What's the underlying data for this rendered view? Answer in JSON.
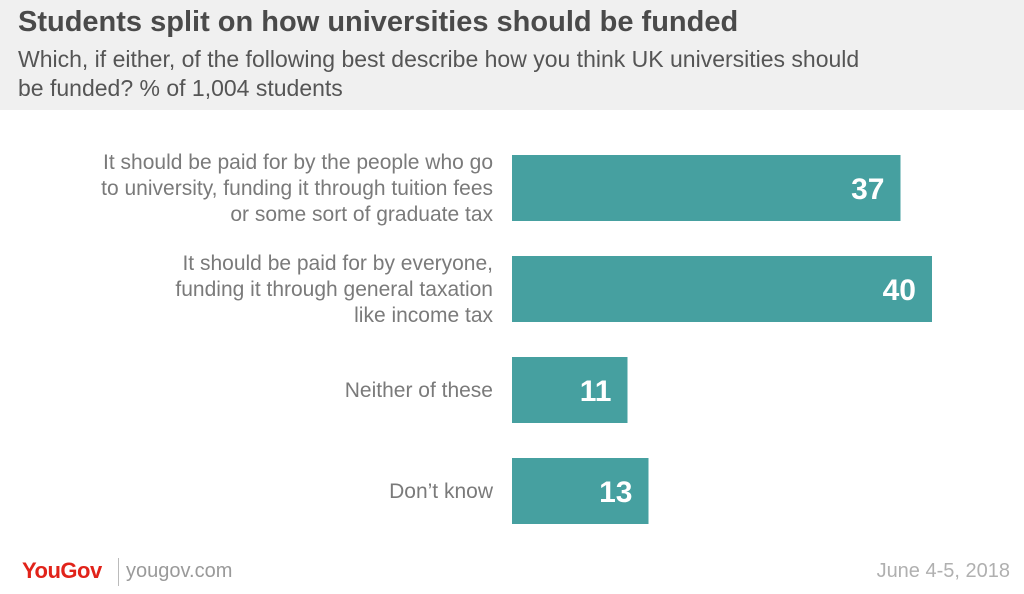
{
  "header": {
    "title": "Students split on how universities should be funded",
    "subtitle_lines": [
      "Which, if either, of the following best describe how you think UK universities should",
      "be funded? % of 1,004 students"
    ]
  },
  "chart_data": {
    "type": "bar",
    "orientation": "horizontal",
    "categories": [
      [
        "It should be paid for by the people who go",
        "to university, funding it through tuition fees",
        "or some sort of graduate tax"
      ],
      [
        "It should be paid for by everyone,",
        "funding it through general taxation",
        "like income tax"
      ],
      [
        "Neither of these"
      ],
      [
        "Don’t know"
      ]
    ],
    "values": [
      37,
      40,
      11,
      13
    ],
    "bar_color": "#46a0a0",
    "grid": false,
    "legend": "none"
  },
  "footer": {
    "logo": "YouGov",
    "site": "yougov.com",
    "date": "June 4-5, 2018"
  },
  "colors": {
    "brand_red": "#e1231a",
    "bar": "#46a0a0",
    "header_bg": "#f0f0f0"
  }
}
